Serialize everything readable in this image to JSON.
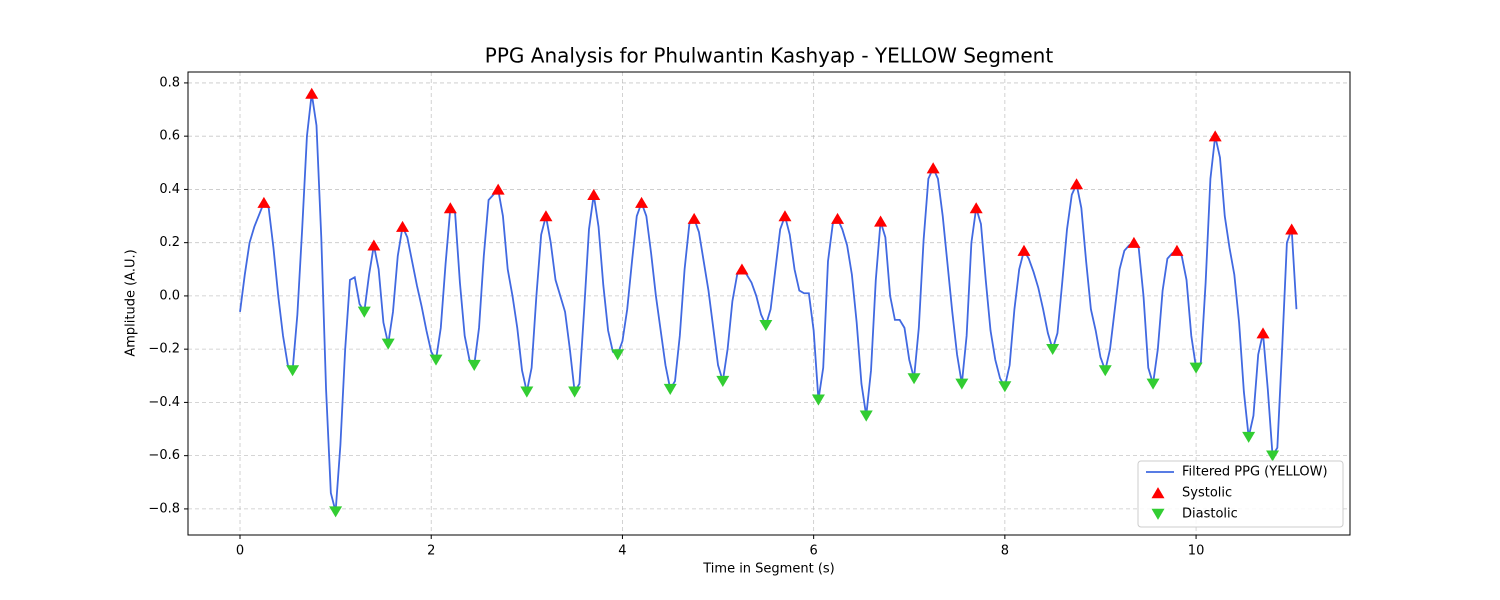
{
  "chart_data": {
    "type": "line",
    "title": "PPG Analysis for Phulwantin Kashyap - YELLOW Segment",
    "xlabel": "Time in Segment (s)",
    "ylabel": "Amplitude (A.U.)",
    "xlim": [
      -0.544,
      11.61
    ],
    "ylim": [
      -0.898,
      0.841
    ],
    "xticks": [
      0,
      2,
      4,
      6,
      8,
      10
    ],
    "yticks": [
      {
        "value": -0.8,
        "label": "−0.8"
      },
      {
        "value": -0.6,
        "label": "−0.6"
      },
      {
        "value": -0.4,
        "label": "−0.4"
      },
      {
        "value": -0.2,
        "label": "−0.2"
      },
      {
        "value": 0,
        "label": "0.0"
      },
      {
        "value": 0.2,
        "label": "0.2"
      },
      {
        "value": 0.4,
        "label": "0.4"
      },
      {
        "value": 0.6,
        "label": "0.6"
      },
      {
        "value": 0.8,
        "label": "0.8"
      }
    ],
    "grid": true,
    "legend": "lower right",
    "x": [
      0,
      0.05,
      0.1,
      0.15,
      0.25,
      0.3,
      0.35,
      0.4,
      0.45,
      0.5,
      0.55,
      0.6,
      0.65,
      0.7,
      0.75,
      0.8,
      0.85,
      0.9,
      0.95,
      1.0,
      1.05,
      1.1,
      1.15,
      1.2,
      1.25,
      1.3,
      1.35,
      1.4,
      1.45,
      1.5,
      1.55,
      1.6,
      1.65,
      1.7,
      1.75,
      1.8,
      1.85,
      1.9,
      1.95,
      2.0,
      2.05,
      2.1,
      2.15,
      2.2,
      2.25,
      2.3,
      2.35,
      2.4,
      2.45,
      2.5,
      2.55,
      2.6,
      2.65,
      2.7,
      2.75,
      2.8,
      2.85,
      2.9,
      2.95,
      3.0,
      3.05,
      3.1,
      3.15,
      3.2,
      3.25,
      3.3,
      3.35,
      3.4,
      3.45,
      3.5,
      3.55,
      3.6,
      3.65,
      3.7,
      3.75,
      3.8,
      3.85,
      3.9,
      3.95,
      4.0,
      4.05,
      4.1,
      4.15,
      4.2,
      4.25,
      4.3,
      4.35,
      4.4,
      4.45,
      4.5,
      4.55,
      4.6,
      4.65,
      4.7,
      4.75,
      4.8,
      4.85,
      4.9,
      4.95,
      5.0,
      5.05,
      5.1,
      5.15,
      5.2,
      5.25,
      5.3,
      5.35,
      5.4,
      5.45,
      5.5,
      5.55,
      5.6,
      5.65,
      5.7,
      5.75,
      5.8,
      5.85,
      5.9,
      5.95,
      6.0,
      6.05,
      6.1,
      6.15,
      6.2,
      6.25,
      6.3,
      6.35,
      6.4,
      6.45,
      6.5,
      6.55,
      6.6,
      6.65,
      6.7,
      6.75,
      6.8,
      6.85,
      6.9,
      6.95,
      7.0,
      7.05,
      7.1,
      7.15,
      7.2,
      7.25,
      7.3,
      7.35,
      7.4,
      7.45,
      7.5,
      7.55,
      7.6,
      7.65,
      7.7,
      7.75,
      7.8,
      7.85,
      7.9,
      7.95,
      8.0,
      8.05,
      8.1,
      8.15,
      8.2,
      8.25,
      8.3,
      8.35,
      8.4,
      8.45,
      8.5,
      8.55,
      8.6,
      8.65,
      8.7,
      8.75,
      8.8,
      8.85,
      8.9,
      8.95,
      9.0,
      9.05,
      9.1,
      9.15,
      9.2,
      9.25,
      9.3,
      9.35,
      9.4,
      9.45,
      9.5,
      9.55,
      9.6,
      9.65,
      9.7,
      9.75,
      9.8,
      9.85,
      9.9,
      9.95,
      10.0,
      10.05,
      10.1,
      10.15,
      10.2,
      10.25,
      10.3,
      10.35,
      10.4,
      10.45,
      10.5,
      10.55,
      10.6,
      10.65,
      10.7,
      10.75,
      10.8,
      10.85,
      10.9,
      10.95,
      11.0,
      11.05
    ],
    "series": [
      {
        "name": "Filtered PPG (YELLOW)",
        "type": "line",
        "color": "#4169e1",
        "values": [
          -0.06,
          0.08,
          0.2,
          0.26,
          0.35,
          0.33,
          0.18,
          0.0,
          -0.15,
          -0.26,
          -0.28,
          -0.07,
          0.25,
          0.6,
          0.76,
          0.64,
          0.22,
          -0.35,
          -0.74,
          -0.81,
          -0.56,
          -0.2,
          0.06,
          0.07,
          -0.03,
          -0.06,
          0.08,
          0.19,
          0.1,
          -0.1,
          -0.18,
          -0.06,
          0.15,
          0.26,
          0.22,
          0.13,
          0.04,
          -0.04,
          -0.13,
          -0.21,
          -0.24,
          -0.12,
          0.12,
          0.33,
          0.31,
          0.05,
          -0.15,
          -0.24,
          -0.26,
          -0.12,
          0.15,
          0.36,
          0.38,
          0.4,
          0.3,
          0.1,
          0.0,
          -0.12,
          -0.28,
          -0.36,
          -0.27,
          0.0,
          0.23,
          0.3,
          0.2,
          0.06,
          0.0,
          -0.06,
          -0.2,
          -0.36,
          -0.33,
          -0.05,
          0.25,
          0.38,
          0.26,
          0.04,
          -0.13,
          -0.21,
          -0.22,
          -0.17,
          -0.05,
          0.13,
          0.3,
          0.35,
          0.3,
          0.16,
          0.0,
          -0.13,
          -0.26,
          -0.35,
          -0.32,
          -0.15,
          0.1,
          0.27,
          0.29,
          0.24,
          0.13,
          0.02,
          -0.12,
          -0.26,
          -0.32,
          -0.2,
          -0.02,
          0.08,
          0.1,
          0.08,
          0.05,
          0.0,
          -0.07,
          -0.11,
          -0.05,
          0.1,
          0.25,
          0.3,
          0.23,
          0.1,
          0.02,
          0.01,
          0.01,
          -0.13,
          -0.39,
          -0.27,
          0.13,
          0.27,
          0.29,
          0.25,
          0.19,
          0.08,
          -0.1,
          -0.33,
          -0.45,
          -0.28,
          0.06,
          0.28,
          0.22,
          0.0,
          -0.09,
          -0.09,
          -0.12,
          -0.24,
          -0.31,
          -0.12,
          0.21,
          0.44,
          0.48,
          0.44,
          0.3,
          0.12,
          -0.06,
          -0.22,
          -0.33,
          -0.15,
          0.2,
          0.33,
          0.27,
          0.06,
          -0.13,
          -0.24,
          -0.31,
          -0.34,
          -0.26,
          -0.05,
          0.1,
          0.17,
          0.14,
          0.09,
          0.03,
          -0.05,
          -0.14,
          -0.2,
          -0.14,
          0.05,
          0.25,
          0.38,
          0.42,
          0.33,
          0.13,
          -0.05,
          -0.13,
          -0.23,
          -0.28,
          -0.2,
          -0.05,
          0.1,
          0.17,
          0.19,
          0.2,
          0.18,
          0.0,
          -0.27,
          -0.33,
          -0.2,
          0.02,
          0.14,
          0.16,
          0.17,
          0.15,
          0.06,
          -0.15,
          -0.27,
          -0.25,
          0.05,
          0.44,
          0.6,
          0.52,
          0.3,
          0.18,
          0.08,
          -0.1,
          -0.36,
          -0.53,
          -0.45,
          -0.22,
          -0.14,
          -0.35,
          -0.6,
          -0.57,
          -0.2,
          0.2,
          0.25,
          -0.05
        ]
      },
      {
        "name": "Systolic",
        "type": "scatter",
        "marker": "triangle-up",
        "color": "#ff0000",
        "x": [
          0.25,
          0.75,
          1.4,
          1.7,
          2.2,
          2.7,
          3.2,
          3.7,
          4.2,
          4.75,
          5.25,
          5.7,
          6.25,
          6.7,
          7.25,
          7.7,
          8.2,
          8.75,
          9.35,
          9.8,
          10.2,
          10.7,
          11.0
        ],
        "values": [
          0.35,
          0.76,
          0.19,
          0.26,
          0.33,
          0.4,
          0.3,
          0.38,
          0.35,
          0.29,
          0.1,
          0.3,
          0.29,
          0.28,
          0.48,
          0.33,
          0.17,
          0.42,
          0.2,
          0.17,
          0.6,
          -0.14,
          0.25
        ]
      },
      {
        "name": "Diastolic",
        "type": "scatter",
        "marker": "triangle-down",
        "color": "#32cd32",
        "x": [
          0.55,
          1.0,
          1.3,
          1.55,
          2.05,
          2.45,
          3.0,
          3.5,
          3.95,
          4.5,
          5.05,
          5.5,
          6.05,
          6.55,
          7.05,
          7.55,
          8.0,
          8.5,
          9.05,
          9.55,
          10.0,
          10.55,
          10.8
        ],
        "values": [
          -0.28,
          -0.81,
          -0.06,
          -0.18,
          -0.24,
          -0.26,
          -0.36,
          -0.36,
          -0.22,
          -0.35,
          -0.32,
          -0.11,
          -0.39,
          -0.45,
          -0.31,
          -0.33,
          -0.34,
          -0.2,
          -0.28,
          -0.33,
          -0.27,
          -0.53,
          -0.6
        ]
      }
    ]
  }
}
